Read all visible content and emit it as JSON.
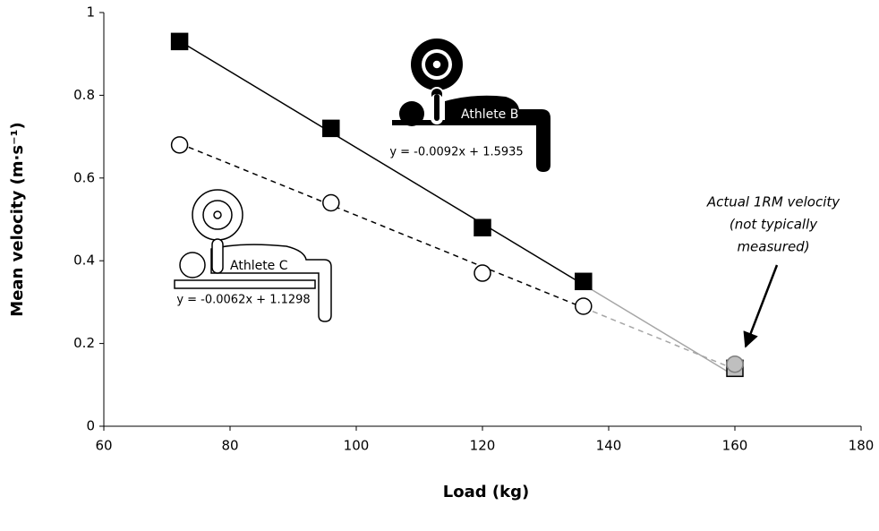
{
  "chart_data": {
    "type": "scatter",
    "x_label": "Load (kg)",
    "y_label": "Mean velocity (m·s⁻¹)",
    "xlim": [
      60,
      180
    ],
    "xticks": [
      60,
      80,
      100,
      120,
      140,
      160,
      180
    ],
    "ylim": [
      0,
      1
    ],
    "yticks": [
      0,
      0.2,
      0.4,
      0.6,
      0.8,
      1
    ],
    "series": [
      {
        "name": "Athlete B",
        "marker": "square",
        "color": "#000000",
        "line_style": "solid",
        "extension_color": "#a6a6a6",
        "x": [
          72,
          96,
          120,
          136
        ],
        "values": [
          0.93,
          0.72,
          0.48,
          0.35
        ],
        "trendline": {
          "slope": -0.0092,
          "intercept": 1.5935,
          "label": "y = -0.0092x + 1.5935"
        },
        "one_rm": {
          "x": 160,
          "value": 0.14,
          "color": "#bfbfbf"
        }
      },
      {
        "name": "Athlete C",
        "marker": "circle",
        "color": "#000000",
        "line_style": "dashed",
        "extension_color": "#a6a6a6",
        "x": [
          72,
          96,
          120,
          136
        ],
        "values": [
          0.68,
          0.54,
          0.37,
          0.29
        ],
        "trendline": {
          "slope": -0.0062,
          "intercept": 1.1298,
          "label": "y = -0.0062x + 1.1298"
        },
        "one_rm": {
          "x": 160,
          "value": 0.15,
          "color": "#bfbfbf"
        }
      }
    ],
    "annotation": [
      "Actual 1RM velocity",
      "(not typically",
      "measured)"
    ]
  }
}
